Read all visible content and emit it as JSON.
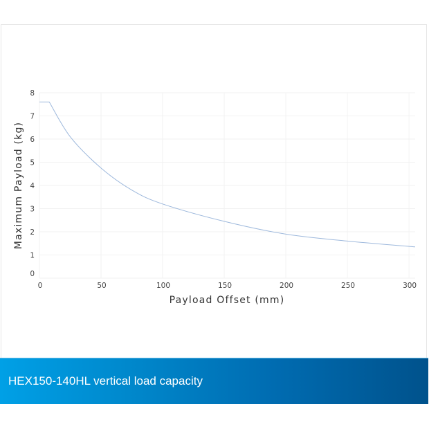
{
  "chart_data": {
    "type": "line",
    "title": "",
    "xlabel": "Payload Offset (mm)",
    "ylabel": "Maximum Payload (kg)",
    "xlim": [
      0,
      305
    ],
    "ylim": [
      0,
      8
    ],
    "x_ticks": [
      0,
      50,
      100,
      150,
      200,
      250,
      300
    ],
    "y_ticks": [
      0,
      1,
      2,
      3,
      4,
      5,
      6,
      7,
      8
    ],
    "grid": true,
    "legend": null,
    "series": [
      {
        "name": "Maximum Payload",
        "color": "#9db8dc",
        "x": [
          0,
          8,
          25,
          50,
          75,
          100,
          150,
          200,
          250,
          305
        ],
        "values": [
          7.6,
          7.6,
          6.1,
          4.75,
          3.8,
          3.2,
          2.45,
          1.9,
          1.6,
          1.35
        ]
      }
    ]
  },
  "labels": {
    "x_axis_title": "Payload Offset (mm)",
    "y_axis_title": "Maximum Payload (kg)"
  },
  "banner": {
    "caption": "HEX150-140HL vertical load capacity",
    "gradient_start": "#00a0e6",
    "gradient_end": "#00528c"
  }
}
